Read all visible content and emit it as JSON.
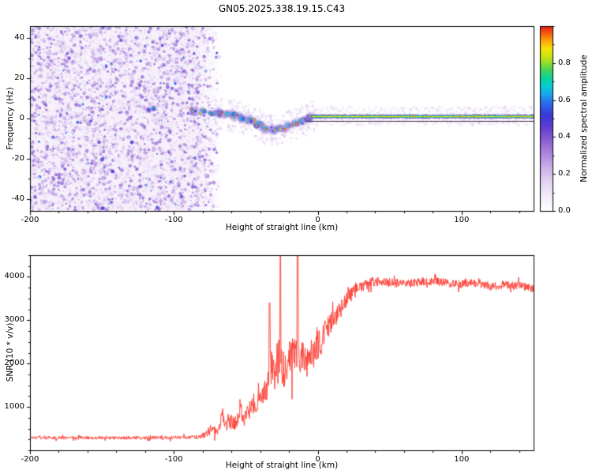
{
  "title": "GN05.2025.338.19.15.C43",
  "figure": {
    "background": "#ffffff",
    "frame_color": "#000000"
  },
  "chart_data": [
    {
      "type": "heatmap",
      "name": "doppler-spectrogram",
      "xlabel": "Height of straight line (km)",
      "ylabel": "Frequency (Hz)",
      "xlim": [
        -200,
        150
      ],
      "ylim": [
        -46,
        46
      ],
      "xticks": [
        -200,
        -100,
        0,
        100
      ],
      "yticks": [
        -40,
        -20,
        0,
        20,
        40
      ],
      "x_minor_step": 20,
      "y_minor_step": 10,
      "grid": false,
      "colorbar": {
        "label": "Normalized spectral amplitude",
        "ticks": [
          0,
          0.2,
          0.4,
          0.6,
          0.8
        ],
        "lim": [
          0,
          1
        ],
        "minor_step": 0.1,
        "colormap_stops": [
          [
            0.0,
            "#ffffff"
          ],
          [
            0.08,
            "#f3ecfa"
          ],
          [
            0.16,
            "#e2d2f2"
          ],
          [
            0.24,
            "#c9ace7"
          ],
          [
            0.32,
            "#a87fdb"
          ],
          [
            0.4,
            "#8055d0"
          ],
          [
            0.46,
            "#5b3bd0"
          ],
          [
            0.52,
            "#3a3ad8"
          ],
          [
            0.58,
            "#2b6ae8"
          ],
          [
            0.63,
            "#19a4ef"
          ],
          [
            0.68,
            "#06cfd2"
          ],
          [
            0.72,
            "#0cd39a"
          ],
          [
            0.76,
            "#3ed45e"
          ],
          [
            0.8,
            "#8fdd2a"
          ],
          [
            0.84,
            "#cfe312"
          ],
          [
            0.88,
            "#f7df06"
          ],
          [
            0.92,
            "#fca908"
          ],
          [
            0.96,
            "#f9610d"
          ],
          [
            1.0,
            "#e31a1c"
          ]
        ]
      },
      "content": {
        "noise_region": {
          "x_range": [
            -200,
            -70
          ],
          "fade_km": 14,
          "amplitude_range": [
            0.05,
            0.55
          ]
        },
        "isolated_echoes": [
          {
            "x": -114,
            "y": 5,
            "amplitude": 0.72
          },
          {
            "x": -117.5,
            "y": 4.2,
            "amplitude": 0.6
          }
        ],
        "trace": [
          [
            -88,
            4.5
          ],
          [
            -82,
            3.8
          ],
          [
            -76,
            3.2
          ],
          [
            -70,
            2.6
          ],
          [
            -64,
            2.0
          ],
          [
            -58,
            1.2
          ],
          [
            -52,
            0.2
          ],
          [
            -46,
            -1.5
          ],
          [
            -40,
            -3.5
          ],
          [
            -34,
            -5.2
          ],
          [
            -28,
            -5.8
          ],
          [
            -22,
            -4.2
          ],
          [
            -16,
            -2.6
          ],
          [
            -10,
            -1.2
          ],
          [
            -4,
            0.6
          ],
          [
            0,
            1.2
          ]
        ],
        "locked_line": {
          "x_range": [
            -4,
            150
          ],
          "y": 1.2,
          "core_amplitude": 0.95
        },
        "baseline_mark": {
          "x_range": [
            -8,
            150
          ],
          "y": -1.2
        }
      }
    },
    {
      "type": "line",
      "name": "snr-profile",
      "xlabel": "Height of straight line (km)",
      "ylabel": "SNR (10 * v/v)",
      "xlim": [
        -200,
        150
      ],
      "ylim": [
        0,
        4500
      ],
      "xticks": [
        -200,
        -100,
        0,
        100
      ],
      "yticks": [
        1000,
        2000,
        3000,
        4000
      ],
      "x_minor_step": 20,
      "y_minor_step": 250,
      "grid": false,
      "line_color": "#fb3a30",
      "envelope": [
        [
          -200,
          290,
          70
        ],
        [
          -150,
          290,
          70
        ],
        [
          -100,
          290,
          70
        ],
        [
          -85,
          300,
          80
        ],
        [
          -78,
          360,
          140
        ],
        [
          -73,
          520,
          260
        ],
        [
          -69,
          480,
          220
        ],
        [
          -66,
          820,
          380
        ],
        [
          -63,
          560,
          260
        ],
        [
          -60,
          700,
          350
        ],
        [
          -57,
          620,
          300
        ],
        [
          -54,
          980,
          420
        ],
        [
          -51,
          700,
          330
        ],
        [
          -48,
          900,
          400
        ],
        [
          -45,
          1150,
          520
        ],
        [
          -42,
          950,
          450
        ],
        [
          -39,
          1450,
          650
        ],
        [
          -36,
          1250,
          600
        ],
        [
          -33,
          1900,
          800
        ],
        [
          -30,
          1700,
          750
        ],
        [
          -27,
          2300,
          950
        ],
        [
          -24,
          1850,
          800
        ],
        [
          -21,
          1950,
          800
        ],
        [
          -18,
          2150,
          850
        ],
        [
          -15,
          2250,
          900
        ],
        [
          -12,
          2050,
          800
        ],
        [
          -9,
          2150,
          750
        ],
        [
          -6,
          2100,
          800
        ],
        [
          -3,
          2200,
          750
        ],
        [
          0,
          2400,
          650
        ],
        [
          4,
          2700,
          520
        ],
        [
          8,
          2850,
          480
        ],
        [
          12,
          3050,
          430
        ],
        [
          16,
          3250,
          380
        ],
        [
          20,
          3450,
          330
        ],
        [
          25,
          3650,
          280
        ],
        [
          30,
          3780,
          240
        ],
        [
          40,
          3900,
          210
        ],
        [
          50,
          3870,
          190
        ],
        [
          60,
          3830,
          180
        ],
        [
          70,
          3880,
          180
        ],
        [
          80,
          3900,
          170
        ],
        [
          90,
          3850,
          170
        ],
        [
          100,
          3830,
          170
        ],
        [
          110,
          3870,
          170
        ],
        [
          120,
          3780,
          180
        ],
        [
          130,
          3820,
          170
        ],
        [
          140,
          3800,
          170
        ],
        [
          150,
          3720,
          160
        ]
      ],
      "spikes": [
        [
          -33.5,
          3400
        ],
        [
          -26,
          4900
        ],
        [
          -14,
          5300
        ]
      ]
    }
  ]
}
